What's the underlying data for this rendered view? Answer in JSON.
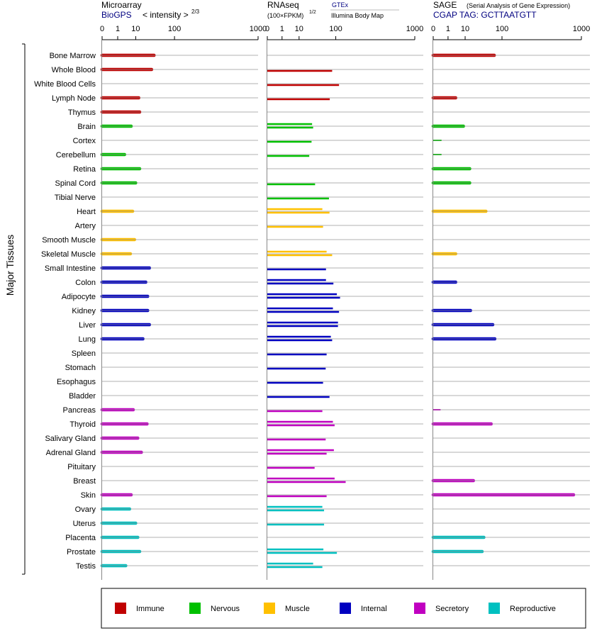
{
  "headers": {
    "microarray_title": "Microarray",
    "microarray_source": "BioGPS",
    "microarray_units": "< intensity >",
    "microarray_exponent": "2/3",
    "rnaseq_title": "RNAseq",
    "rnaseq_units": "(100×FPKM)",
    "rnaseq_exponent": "1/2",
    "rnaseq_source1": "GTEx",
    "rnaseq_source2": "Illumina Body Map",
    "sage_title": "SAGE",
    "sage_subtitle": "(Serial Analysis of Gene Expression)",
    "sage_tag": "CGAP TAG: GCTTAATGTT"
  },
  "chart_data": {
    "type": "bar",
    "orientation": "horizontal",
    "y_group_label": "Major Tissues",
    "tick_labels": [
      "0",
      "1",
      "10",
      "100",
      "1000"
    ],
    "tick_values": [
      0,
      1,
      10,
      100,
      1000
    ],
    "xlim": [
      0,
      1000
    ],
    "grid": true,
    "legend_position": "bottom",
    "categories": [
      {
        "key": "immune",
        "label": "Immune",
        "color": "#c00000"
      },
      {
        "key": "nervous",
        "label": "Nervous",
        "color": "#00c000"
      },
      {
        "key": "muscle",
        "label": "Muscle",
        "color": "#ffc000"
      },
      {
        "key": "internal",
        "label": "Internal",
        "color": "#0000c0"
      },
      {
        "key": "secretory",
        "label": "Secretory",
        "color": "#c000c0"
      },
      {
        "key": "reproductive",
        "label": "Reproductive",
        "color": "#00c0c0"
      }
    ],
    "tissues": [
      {
        "name": "Bone Marrow",
        "cat": "immune",
        "microarray": 37,
        "rnaseq": [],
        "sage": 70
      },
      {
        "name": "Whole Blood",
        "cat": "immune",
        "microarray": 32,
        "rnaseq": [
          85
        ],
        "sage": null
      },
      {
        "name": "White Blood Cells",
        "cat": "immune",
        "microarray": null,
        "rnaseq": [
          115
        ],
        "sage": null
      },
      {
        "name": "Lymph Node",
        "cat": "immune",
        "microarray": 13,
        "rnaseq": [
          76
        ],
        "sage": 3.5
      },
      {
        "name": "Thymus",
        "cat": "immune",
        "microarray": 14,
        "rnaseq": [],
        "sage": null
      },
      {
        "name": "Brain",
        "cat": "nervous",
        "microarray": 6.5,
        "rnaseq": [
          28,
          30
        ],
        "sage": 8.5
      },
      {
        "name": "Cortex",
        "cat": "nervous",
        "microarray": null,
        "rnaseq": [
          27
        ],
        "sage": 0.15
      },
      {
        "name": "Cerebellum",
        "cat": "nervous",
        "microarray": 3,
        "rnaseq": [
          23
        ],
        "sage": 0.15
      },
      {
        "name": "Retina",
        "cat": "nervous",
        "microarray": 14,
        "rnaseq": [],
        "sage": 15
      },
      {
        "name": "Spinal Cord",
        "cat": "nervous",
        "microarray": 10,
        "rnaseq": [
          34
        ],
        "sage": 15
      },
      {
        "name": "Tibial Nerve",
        "cat": "nervous",
        "microarray": null,
        "rnaseq": [
          73
        ],
        "sage": null
      },
      {
        "name": "Heart",
        "cat": "muscle",
        "microarray": 7.5,
        "rnaseq": [
          52,
          75
        ],
        "sage": 45
      },
      {
        "name": "Artery",
        "cat": "muscle",
        "microarray": null,
        "rnaseq": [
          54
        ],
        "sage": null
      },
      {
        "name": "Smooth Muscle",
        "cat": "muscle",
        "microarray": 9,
        "rnaseq": [],
        "sage": null
      },
      {
        "name": "Skeletal Muscle",
        "cat": "muscle",
        "microarray": 6,
        "rnaseq": [
          65,
          85
        ],
        "sage": 3.5
      },
      {
        "name": "Small Intestine",
        "cat": "internal",
        "microarray": 28,
        "rnaseq": [
          63
        ],
        "sage": null
      },
      {
        "name": "Colon",
        "cat": "internal",
        "microarray": 22,
        "rnaseq": [
          63,
          90
        ],
        "sage": 3.5
      },
      {
        "name": "Adipocyte",
        "cat": "internal",
        "microarray": 25,
        "rnaseq": [
          105,
          120
        ],
        "sage": null
      },
      {
        "name": "Kidney",
        "cat": "internal",
        "microarray": 25,
        "rnaseq": [
          88,
          115
        ],
        "sage": 16
      },
      {
        "name": "Liver",
        "cat": "internal",
        "microarray": 28,
        "rnaseq": [
          110,
          110
        ],
        "sage": 65
      },
      {
        "name": "Lung",
        "cat": "internal",
        "microarray": 18,
        "rnaseq": [
          80,
          85
        ],
        "sage": 72
      },
      {
        "name": "Spleen",
        "cat": "internal",
        "microarray": null,
        "rnaseq": [
          65
        ],
        "sage": null
      },
      {
        "name": "Stomach",
        "cat": "internal",
        "microarray": null,
        "rnaseq": [
          62
        ],
        "sage": null
      },
      {
        "name": "Esophagus",
        "cat": "internal",
        "microarray": null,
        "rnaseq": [
          54
        ],
        "sage": null
      },
      {
        "name": "Bladder",
        "cat": "internal",
        "microarray": null,
        "rnaseq": [
          75
        ],
        "sage": null
      },
      {
        "name": "Pancreas",
        "cat": "secretory",
        "microarray": 8,
        "rnaseq": [
          52
        ],
        "sage": 0.1
      },
      {
        "name": "Thyroid",
        "cat": "secretory",
        "microarray": 24,
        "rnaseq": [
          88,
          95
        ],
        "sage": 60
      },
      {
        "name": "Salivary Gland",
        "cat": "secretory",
        "microarray": 12,
        "rnaseq": [
          62
        ],
        "sage": null
      },
      {
        "name": "Adrenal Gland",
        "cat": "secretory",
        "microarray": 16,
        "rnaseq": [
          92,
          65
        ],
        "sage": null
      },
      {
        "name": "Pituitary",
        "cat": "secretory",
        "microarray": null,
        "rnaseq": [
          33
        ],
        "sage": null
      },
      {
        "name": "Breast",
        "cat": "secretory",
        "microarray": null,
        "rnaseq": [
          95,
          150
        ],
        "sage": 20
      },
      {
        "name": "Skin",
        "cat": "secretory",
        "microarray": 6.5,
        "rnaseq": [
          65
        ],
        "sage": 850
      },
      {
        "name": "Ovary",
        "cat": "reproductive",
        "microarray": 5.5,
        "rnaseq": [
          52,
          57
        ],
        "sage": null
      },
      {
        "name": "Uterus",
        "cat": "reproductive",
        "microarray": 10,
        "rnaseq": [
          57
        ],
        "sage": null
      },
      {
        "name": "Placenta",
        "cat": "reproductive",
        "microarray": 12,
        "rnaseq": [],
        "sage": 40
      },
      {
        "name": "Prostate",
        "cat": "reproductive",
        "microarray": 14,
        "rnaseq": [
          55,
          105
        ],
        "sage": 36
      },
      {
        "name": "Testis",
        "cat": "reproductive",
        "microarray": 3.5,
        "rnaseq": [
          30,
          52
        ],
        "sage": null
      }
    ]
  }
}
